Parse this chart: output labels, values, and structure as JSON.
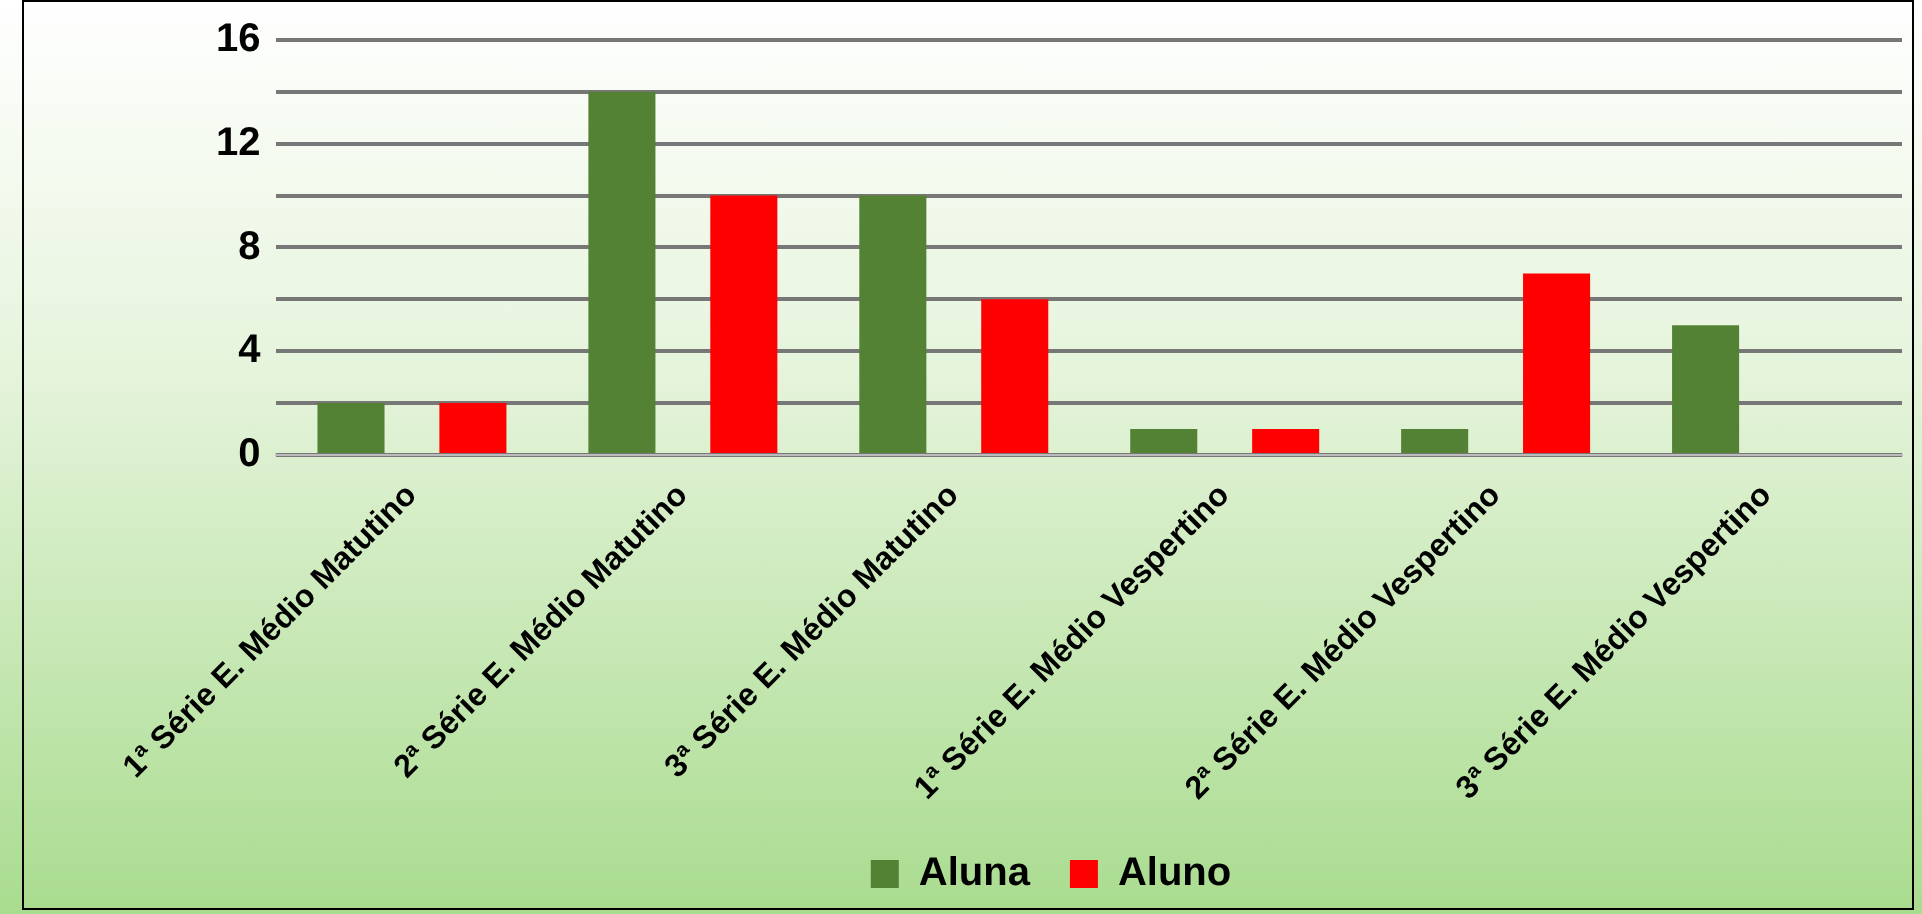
{
  "chart_data": {
    "type": "bar",
    "categories": [
      "1ª Série E. Médio Matutino",
      "2ª Série E. Médio Matutino",
      "3ª Série E. Médio Matutino",
      "1ª Série E. Médio Vespertino",
      "2ª Série E. Médio Vespertino",
      "3ª Série E. Médio Vespertino"
    ],
    "series": [
      {
        "name": "Aluna",
        "color": "#548235",
        "values": [
          2,
          14,
          10,
          1,
          1,
          5
        ]
      },
      {
        "name": "Aluno",
        "color": "#ff0000",
        "values": [
          2,
          10,
          6,
          1,
          7,
          0
        ]
      }
    ],
    "ylim": [
      0,
      16
    ],
    "yticks": [
      0,
      {
        "value": 2,
        "label": null
      },
      4,
      {
        "value": 6,
        "label": null
      },
      8,
      {
        "value": 10,
        "label": null
      },
      12,
      {
        "value": 14,
        "label": null
      },
      16
    ],
    "grid": "y",
    "legend": "bottom"
  }
}
